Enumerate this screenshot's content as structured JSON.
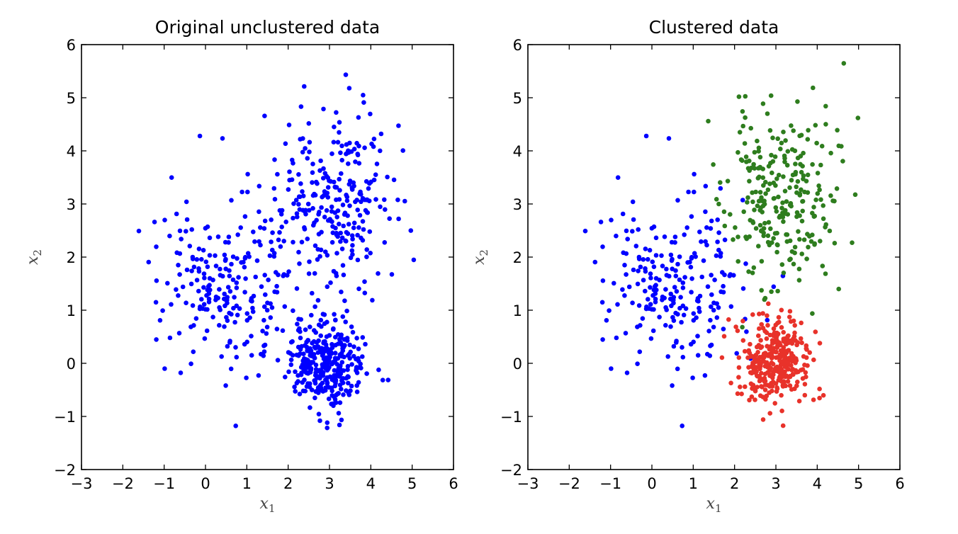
{
  "chart_data": [
    {
      "type": "scatter",
      "title": "Original unclustered data",
      "xlabel": "x",
      "xlabel_sub": "1",
      "ylabel": "x",
      "ylabel_sub": "2",
      "xlim": [
        -3,
        6
      ],
      "ylim": [
        -2,
        6
      ],
      "xticks": [
        -3,
        -2,
        -1,
        0,
        1,
        2,
        3,
        4,
        5,
        6
      ],
      "yticks": [
        -2,
        -1,
        0,
        1,
        2,
        3,
        4,
        5,
        6
      ],
      "xtick_labels": [
        "−3",
        "−2",
        "−1",
        "0",
        "1",
        "2",
        "3",
        "4",
        "5",
        "6"
      ],
      "ytick_labels": [
        "−2",
        "−1",
        "0",
        "1",
        "2",
        "3",
        "4",
        "5",
        "6"
      ],
      "grid": false,
      "series": [
        {
          "color": "#0000ff",
          "generator": {
            "seed": 7,
            "clusters": [
              {
                "mean": [
                  0.6,
                  1.5
                ],
                "std": [
                  0.85,
                  0.85
                ],
                "n": 230
              },
              {
                "mean": [
                  3.1,
                  3.1
                ],
                "std": [
                  0.65,
                  0.85
                ],
                "n": 260
              },
              {
                "mean": [
                  2.9,
                  0.05
                ],
                "std": [
                  0.45,
                  0.4
                ],
                "n": 330
              }
            ]
          }
        }
      ]
    },
    {
      "type": "scatter",
      "title": "Clustered data",
      "xlabel": "x",
      "xlabel_sub": "1",
      "ylabel": "x",
      "ylabel_sub": "2",
      "xlim": [
        -3,
        6
      ],
      "ylim": [
        -2,
        6
      ],
      "xticks": [
        -3,
        -2,
        -1,
        0,
        1,
        2,
        3,
        4,
        5,
        6
      ],
      "yticks": [
        -2,
        -1,
        0,
        1,
        2,
        3,
        4,
        5,
        6
      ],
      "xtick_labels": [
        "−3",
        "−2",
        "−1",
        "0",
        "1",
        "2",
        "3",
        "4",
        "5",
        "6"
      ],
      "ytick_labels": [
        "−2",
        "−1",
        "0",
        "1",
        "2",
        "3",
        "4",
        "5",
        "6"
      ],
      "grid": false,
      "series": [
        {
          "color": "#0000ff",
          "generator": {
            "seed": 7,
            "clusters": [
              {
                "mean": [
                  0.6,
                  1.5
                ],
                "std": [
                  0.85,
                  0.85
                ],
                "n": 230
              }
            ]
          }
        },
        {
          "color": "#2e7d1e",
          "generator": {
            "seed": 11,
            "clusters": [
              {
                "mean": [
                  3.1,
                  3.1
                ],
                "std": [
                  0.65,
                  0.85
                ],
                "n": 260
              }
            ]
          }
        },
        {
          "color": "#e8322a",
          "generator": {
            "seed": 13,
            "clusters": [
              {
                "mean": [
                  2.9,
                  0.05
                ],
                "std": [
                  0.45,
                  0.4
                ],
                "n": 330
              }
            ]
          }
        }
      ]
    }
  ]
}
